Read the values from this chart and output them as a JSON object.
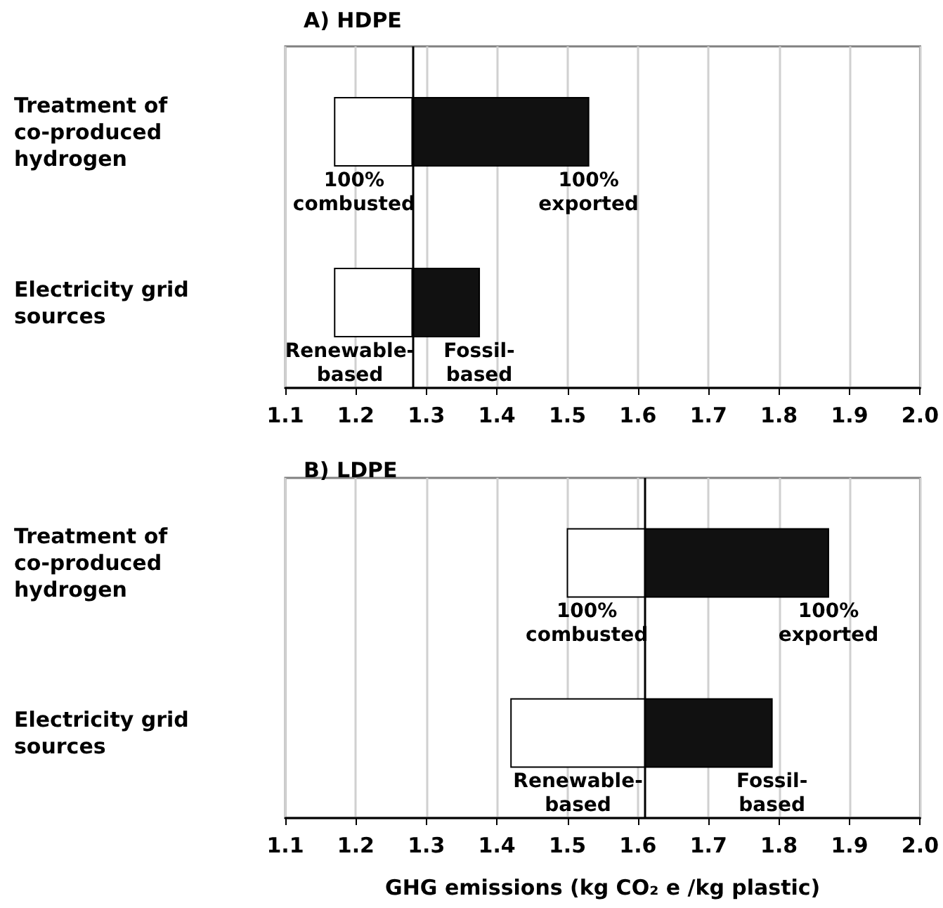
{
  "chart_data": [
    {
      "type": "bar",
      "orientation": "horizontal",
      "title": "A) HDPE",
      "categories": [
        "Treatment of co-produced hydrogen",
        "Electricity grid sources"
      ],
      "series": [
        {
          "color": "#ffffff",
          "base": [
            1.17,
            1.17
          ],
          "values": [
            0.11,
            0.11
          ]
        },
        {
          "color": "#111111",
          "base": [
            1.28,
            1.28
          ],
          "values": [
            0.25,
            0.095
          ]
        }
      ],
      "xlim": [
        1.1,
        2.0
      ],
      "xticks": [
        1.1,
        1.2,
        1.3,
        1.4,
        1.5,
        1.6,
        1.7,
        1.8,
        1.9,
        {
          "value": 2.0,
          "label": "2.0"
        }
      ],
      "grid": "x",
      "ref_lines": [
        {
          "axis": "x",
          "value": 1.28,
          "color": "#000000"
        }
      ],
      "annotations": [
        "100% combusted",
        "100% exported",
        "Renewable-based",
        "Fossil-based"
      ]
    },
    {
      "type": "bar",
      "orientation": "horizontal",
      "title": "B) LDPE",
      "xlabel": "GHG emissions (kg CO₂ e /kg plastic)",
      "categories": [
        "Treatment of co-produced hydrogen",
        "Electricity grid sources"
      ],
      "series": [
        {
          "color": "#ffffff",
          "base": [
            1.5,
            1.42
          ],
          "values": [
            0.11,
            0.19
          ]
        },
        {
          "color": "#111111",
          "base": [
            1.61,
            1.61
          ],
          "values": [
            0.26,
            0.18
          ]
        }
      ],
      "xlim": [
        1.1,
        2.0
      ],
      "xticks": [
        1.1,
        1.2,
        1.3,
        1.4,
        1.5,
        1.6,
        1.7,
        1.8,
        1.9,
        {
          "value": 2.0,
          "label": "2.0"
        }
      ],
      "grid": "x",
      "ref_lines": [
        {
          "axis": "x",
          "value": 1.61,
          "color": "#000000"
        }
      ],
      "annotations": [
        "100% combusted",
        "100% exported",
        "Renewable-based",
        "Fossil-based"
      ]
    }
  ]
}
